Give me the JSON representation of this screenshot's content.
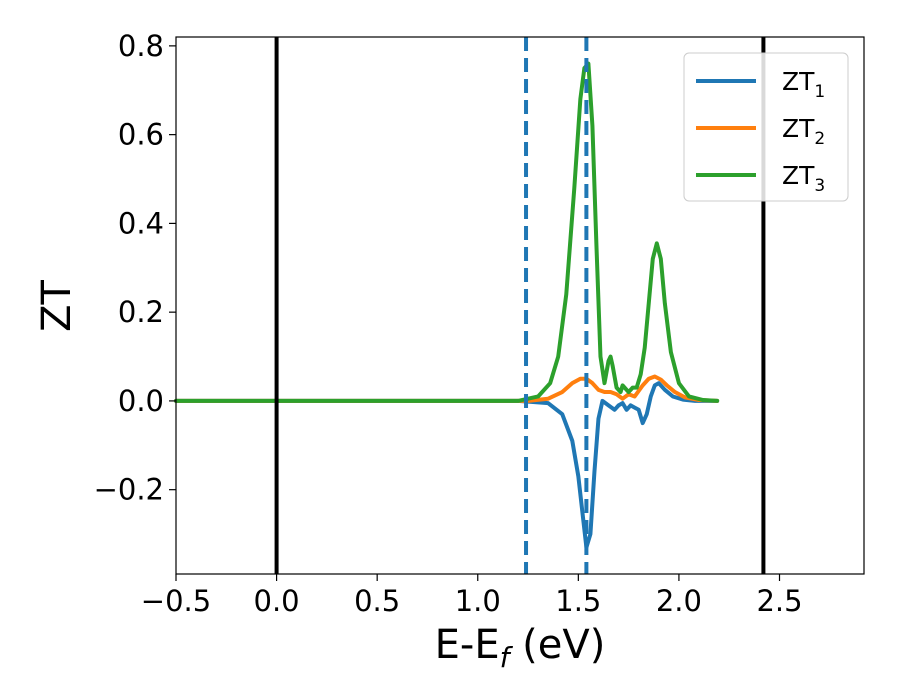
{
  "chart_data": {
    "type": "line",
    "xlabel": "E-E",
    "xlabel_subscript": "f",
    "xlabel_suffix": " (eV)",
    "ylabel": "ZT",
    "xlim": [
      -0.5,
      2.92
    ],
    "ylim": [
      -0.39,
      0.82
    ],
    "xticks": [
      -0.5,
      0.0,
      0.5,
      1.0,
      1.5,
      2.0,
      2.5
    ],
    "xtick_labels": [
      "−0.5",
      "0.0",
      "0.5",
      "1.0",
      "1.5",
      "2.0",
      "2.5"
    ],
    "yticks": [
      -0.2,
      0.0,
      0.2,
      0.4,
      0.6,
      0.8
    ],
    "ytick_labels": [
      "−0.2",
      "0.0",
      "0.2",
      "0.4",
      "0.6",
      "0.8"
    ],
    "grid": false,
    "legend_position": "top-right",
    "vertical_lines": [
      {
        "x": 0.0,
        "style": "solid",
        "color": "#000000"
      },
      {
        "x": 2.42,
        "style": "solid",
        "color": "#000000"
      },
      {
        "x": 1.24,
        "style": "dashed",
        "color": "#1f77b4"
      },
      {
        "x": 1.54,
        "style": "dashed",
        "color": "#1f77b4"
      }
    ],
    "series": [
      {
        "name": "ZT",
        "name_subscript": "1",
        "color": "#1f77b4",
        "x": [
          -0.5,
          1.2,
          1.35,
          1.42,
          1.47,
          1.5,
          1.52,
          1.54,
          1.56,
          1.58,
          1.6,
          1.62,
          1.65,
          1.68,
          1.7,
          1.72,
          1.74,
          1.76,
          1.78,
          1.8,
          1.82,
          1.84,
          1.86,
          1.88,
          1.9,
          1.93,
          1.97,
          2.02,
          2.08,
          2.19
        ],
        "y": [
          0.0,
          0.0,
          -0.005,
          -0.03,
          -0.09,
          -0.17,
          -0.25,
          -0.33,
          -0.3,
          -0.16,
          -0.04,
          0.0,
          -0.01,
          -0.02,
          -0.01,
          -0.005,
          -0.02,
          -0.01,
          -0.015,
          -0.02,
          -0.05,
          -0.03,
          0.01,
          0.035,
          0.04,
          0.025,
          0.01,
          0.003,
          0.0,
          0.0
        ]
      },
      {
        "name": "ZT",
        "name_subscript": "2",
        "color": "#ff7f0e",
        "x": [
          -0.5,
          1.25,
          1.35,
          1.42,
          1.47,
          1.51,
          1.54,
          1.57,
          1.6,
          1.63,
          1.66,
          1.69,
          1.72,
          1.75,
          1.78,
          1.82,
          1.85,
          1.88,
          1.91,
          1.94,
          1.98,
          2.03,
          2.1,
          2.19
        ],
        "y": [
          0.0,
          0.0,
          0.005,
          0.02,
          0.04,
          0.05,
          0.05,
          0.04,
          0.025,
          0.02,
          0.02,
          0.015,
          0.005,
          0.015,
          0.01,
          0.035,
          0.05,
          0.055,
          0.048,
          0.035,
          0.02,
          0.008,
          0.002,
          0.0
        ]
      },
      {
        "name": "ZT",
        "name_subscript": "3",
        "color": "#2ca02c",
        "x": [
          -0.5,
          1.2,
          1.3,
          1.36,
          1.4,
          1.44,
          1.48,
          1.51,
          1.53,
          1.55,
          1.57,
          1.59,
          1.61,
          1.63,
          1.65,
          1.66,
          1.67,
          1.69,
          1.71,
          1.72,
          1.73,
          1.75,
          1.77,
          1.79,
          1.81,
          1.83,
          1.85,
          1.87,
          1.89,
          1.91,
          1.93,
          1.96,
          2.0,
          2.05,
          2.12,
          2.19
        ],
        "y": [
          0.0,
          0.0,
          0.01,
          0.04,
          0.1,
          0.24,
          0.48,
          0.68,
          0.75,
          0.76,
          0.62,
          0.35,
          0.1,
          0.04,
          0.09,
          0.1,
          0.08,
          0.03,
          0.02,
          0.035,
          0.03,
          0.02,
          0.03,
          0.03,
          0.06,
          0.12,
          0.22,
          0.32,
          0.355,
          0.32,
          0.22,
          0.11,
          0.04,
          0.01,
          0.002,
          0.0
        ]
      }
    ]
  }
}
